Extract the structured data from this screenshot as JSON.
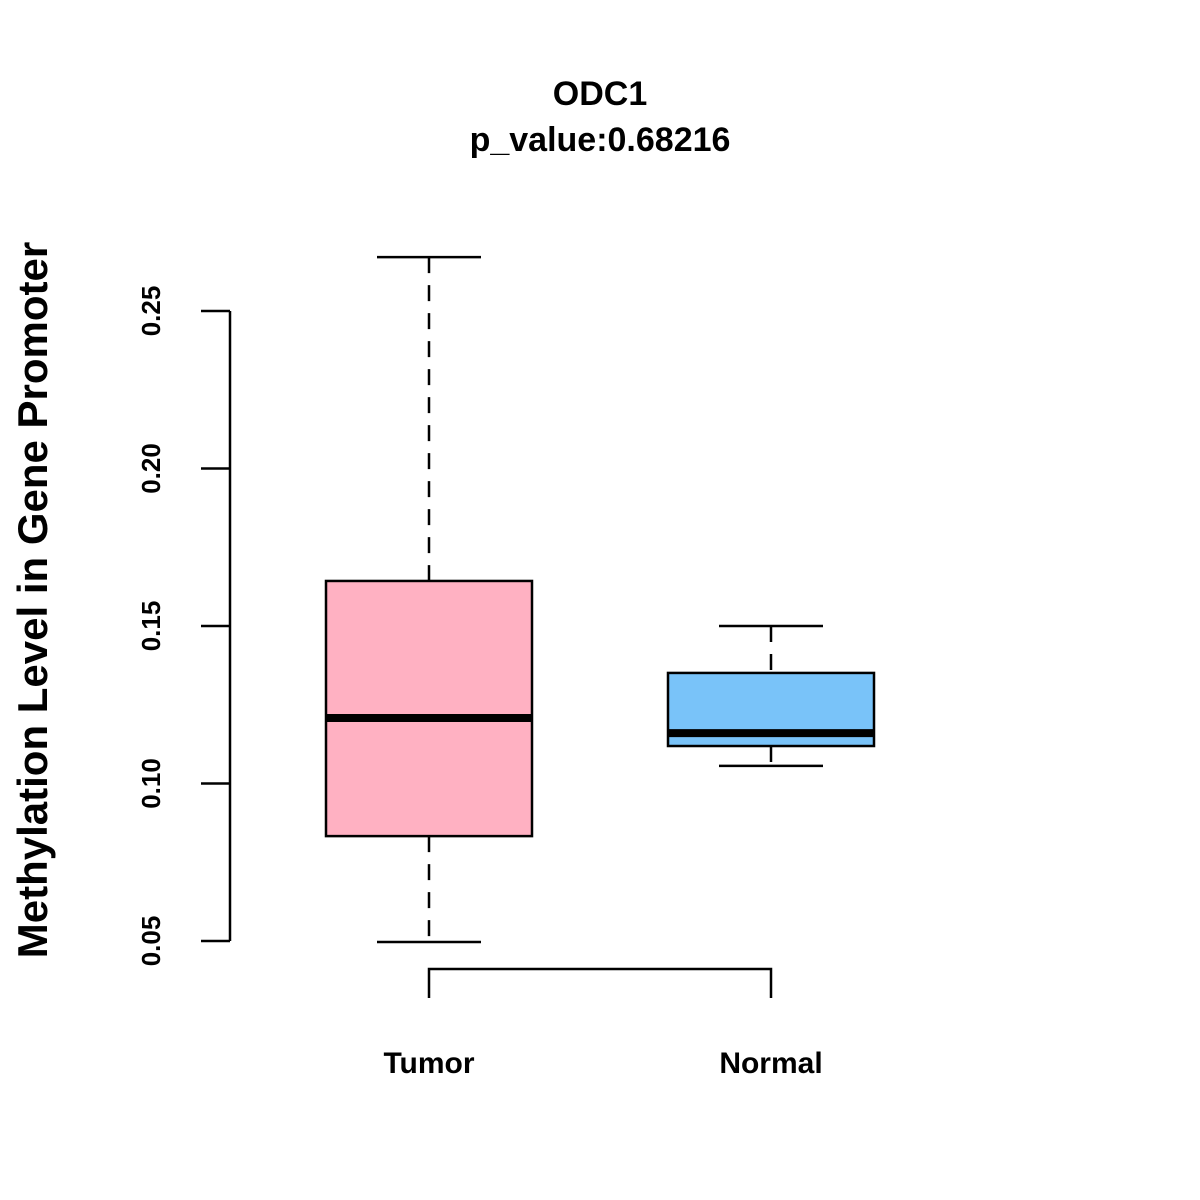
{
  "chart_data": {
    "type": "box",
    "title": "ODC1",
    "subtitle": "p_value:0.68216",
    "xlabel": "",
    "ylabel": "Methylation Level in Gene Promoter",
    "ylim": [
      0.035,
      0.275
    ],
    "yticks": [
      0.05,
      0.1,
      0.15,
      0.2,
      0.25
    ],
    "ytick_labels": [
      "0.05",
      "0.10",
      "0.15",
      "0.20",
      "0.25"
    ],
    "grid": false,
    "categories": [
      "Tumor",
      "Normal"
    ],
    "series": [
      {
        "name": "Tumor",
        "color": "#FFB1C2",
        "whisker_low": 0.0497,
        "q1": 0.0833,
        "median": 0.1208,
        "q3": 0.1643,
        "whisker_high": 0.2671
      },
      {
        "name": "Normal",
        "color": "#79C3F9",
        "whisker_low": 0.1056,
        "q1": 0.1119,
        "median": 0.116,
        "q3": 0.1351,
        "whisker_high": 0.15
      }
    ],
    "comparison_bracket": [
      "Tumor",
      "Normal"
    ]
  }
}
